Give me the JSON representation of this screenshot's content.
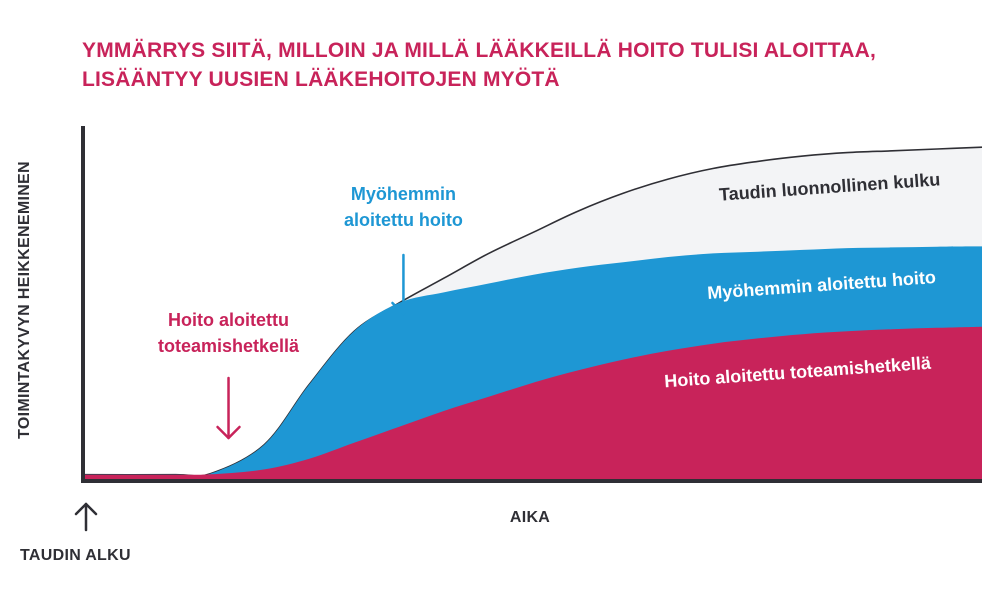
{
  "title": {
    "line1": "YMMÄRRYS SIITÄ, MILLOIN JA MILLÄ LÄÄKKEILLÄ HOITO TULISI ALOITTAA,",
    "line2": "LISÄÄNTYY UUSIEN LÄÄKEHOITOJEN MYÖTÄ"
  },
  "colors": {
    "title": "#c8235a",
    "natural": "#f3f4f6",
    "late": "#1e97d4",
    "early": "#c8235a",
    "axis": "#2f2f35"
  },
  "chart_data": {
    "type": "area",
    "ylabel": "TOIMINTAKYVYN HEIKKENEMINEN",
    "xlabel": "AIKA",
    "start_label": "TAUDIN ALKU",
    "xlim": [
      0,
      100
    ],
    "ylim": [
      0,
      100
    ],
    "grid": false,
    "series": [
      {
        "name": "Taudin luonnollinen kulku",
        "color": "#f3f4f6",
        "x": [
          0,
          10,
          14,
          20,
          25,
          30,
          35,
          40,
          45,
          50,
          55,
          60,
          65,
          70,
          75,
          80,
          85,
          90,
          95,
          100
        ],
        "values": [
          1.5,
          1.5,
          1.8,
          10,
          27,
          42,
          50,
          57,
          64,
          70,
          76,
          81,
          85,
          88,
          90,
          91.5,
          92.5,
          93,
          93.5,
          94
        ]
      },
      {
        "name": "Myöhemmin aloitettu hoito",
        "color": "#1e97d4",
        "x": [
          0,
          10,
          14,
          20,
          25,
          30,
          35,
          40,
          45,
          50,
          55,
          60,
          65,
          70,
          75,
          80,
          85,
          90,
          95,
          100
        ],
        "values": [
          1.5,
          1.5,
          1.8,
          10,
          27,
          42,
          50,
          53,
          55.5,
          58,
          60,
          61.5,
          63,
          64,
          64.5,
          65,
          65.5,
          65.7,
          65.9,
          66
        ]
      },
      {
        "name": "Hoito aloitettu toteamishetkellä",
        "color": "#c8235a",
        "x": [
          0,
          10,
          14,
          20,
          25,
          30,
          35,
          40,
          45,
          50,
          55,
          60,
          65,
          70,
          75,
          80,
          85,
          90,
          95,
          100
        ],
        "values": [
          1.5,
          1.5,
          1.6,
          3,
          6,
          10.5,
          15,
          19.5,
          23.5,
          27.5,
          31,
          34,
          36.5,
          38.5,
          40,
          41.2,
          42,
          42.6,
          43,
          43.3
        ]
      }
    ],
    "annotations": [
      {
        "lines": [
          "Hoito aloitettu",
          "toteamishetkellä"
        ],
        "color": "#c8235a",
        "x": 16,
        "y": 12
      },
      {
        "lines": [
          "Myöhemmin",
          "aloitettu hoito"
        ],
        "color": "#1e97d4",
        "x": 35.5,
        "y": 50
      }
    ]
  }
}
